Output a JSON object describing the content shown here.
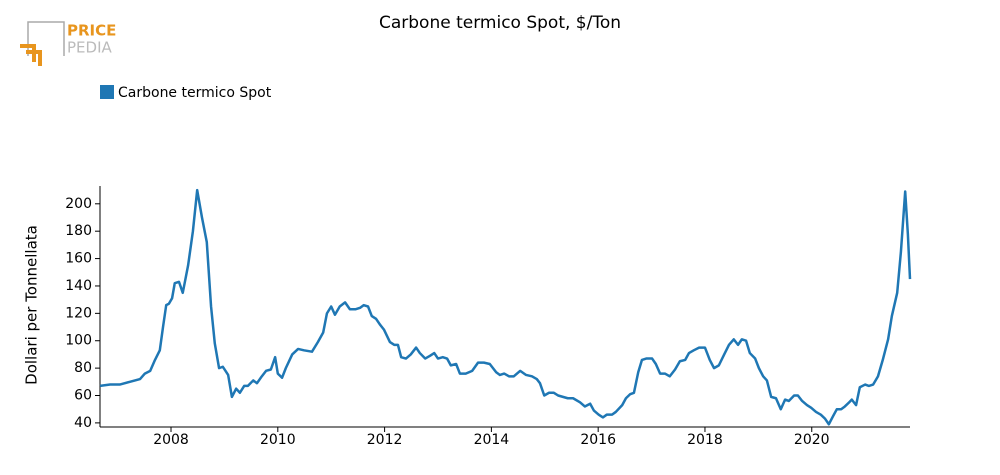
{
  "logo": {
    "top": "PRICE",
    "bottom": "PEDIA"
  },
  "chart_data": {
    "type": "line",
    "title": "Carbone termico Spot, $/Ton",
    "ylabel": "Dollari per Tonnellata",
    "legend": "top-left",
    "xlim": [
      2006.67,
      2021.84
    ],
    "xticks": [
      2008,
      2010,
      2012,
      2014,
      2016,
      2018,
      2020
    ],
    "ylim": [
      37,
      213
    ],
    "yticks": [
      40,
      60,
      80,
      100,
      120,
      140,
      160,
      180,
      200
    ],
    "series": [
      {
        "name": "Carbone termico Spot",
        "color": "#1f77b4",
        "x": [
          2006.67,
          2006.86,
          2007.04,
          2007.23,
          2007.42,
          2007.51,
          2007.61,
          2007.7,
          2007.79,
          2007.85,
          2007.91,
          2007.96,
          2008.02,
          2008.07,
          2008.15,
          2008.22,
          2008.32,
          2008.41,
          2008.49,
          2008.58,
          2008.67,
          2008.75,
          2008.82,
          2008.9,
          2008.97,
          2009.07,
          2009.14,
          2009.22,
          2009.29,
          2009.37,
          2009.44,
          2009.54,
          2009.61,
          2009.7,
          2009.78,
          2009.87,
          2009.95,
          2010.0,
          2010.08,
          2010.15,
          2010.27,
          2010.38,
          2010.49,
          2010.64,
          2010.75,
          2010.85,
          2010.92,
          2011.0,
          2011.07,
          2011.16,
          2011.26,
          2011.35,
          2011.46,
          2011.54,
          2011.61,
          2011.69,
          2011.76,
          2011.84,
          2011.91,
          2011.99,
          2012.1,
          2012.18,
          2012.25,
          2012.31,
          2012.4,
          2012.49,
          2012.59,
          2012.66,
          2012.76,
          2012.85,
          2012.93,
          2013.0,
          2013.09,
          2013.17,
          2013.24,
          2013.34,
          2013.41,
          2013.52,
          2013.64,
          2013.75,
          2013.86,
          2013.97,
          2014.09,
          2014.16,
          2014.24,
          2014.33,
          2014.42,
          2014.54,
          2014.65,
          2014.76,
          2014.85,
          2014.91,
          2014.99,
          2015.08,
          2015.17,
          2015.25,
          2015.34,
          2015.43,
          2015.53,
          2015.66,
          2015.75,
          2015.85,
          2015.92,
          2016.01,
          2016.09,
          2016.16,
          2016.26,
          2016.33,
          2016.45,
          2016.52,
          2016.6,
          2016.67,
          2016.75,
          2016.82,
          2016.9,
          2017.01,
          2017.08,
          2017.16,
          2017.25,
          2017.34,
          2017.44,
          2017.53,
          2017.63,
          2017.7,
          2017.79,
          2017.89,
          2018.0,
          2018.09,
          2018.17,
          2018.26,
          2018.36,
          2018.45,
          2018.54,
          2018.62,
          2018.69,
          2018.77,
          2018.84,
          2018.94,
          2019.01,
          2019.09,
          2019.16,
          2019.24,
          2019.33,
          2019.42,
          2019.5,
          2019.57,
          2019.67,
          2019.74,
          2019.82,
          2019.91,
          2019.99,
          2020.08,
          2020.17,
          2020.25,
          2020.32,
          2020.4,
          2020.47,
          2020.55,
          2020.62,
          2020.7,
          2020.75,
          2020.83,
          2020.9,
          2021.0,
          2021.07,
          2021.15,
          2021.24,
          2021.33,
          2021.43,
          2021.5,
          2021.6,
          2021.67,
          2021.75,
          2021.8,
          2021.84
        ],
        "values": [
          67,
          68,
          68,
          70,
          72,
          76,
          78,
          86,
          93,
          110,
          126,
          127,
          131,
          142,
          143,
          135,
          155,
          180,
          210,
          190,
          172,
          125,
          98,
          80,
          81,
          75,
          59,
          65,
          62,
          67,
          67,
          71,
          69,
          74,
          78,
          79,
          88,
          76,
          73,
          80,
          90,
          94,
          93,
          92,
          99,
          106,
          120,
          125,
          119,
          125,
          128,
          123,
          123,
          124,
          126,
          125,
          118,
          116,
          112,
          108,
          99,
          97,
          97,
          88,
          87,
          90,
          95,
          91,
          87,
          89,
          91,
          87,
          88,
          87,
          82,
          83,
          76,
          76,
          78,
          84,
          84,
          83,
          77,
          75,
          76,
          74,
          74,
          78,
          75,
          74,
          72,
          69,
          60,
          62,
          62,
          60,
          59,
          58,
          58,
          55,
          52,
          54,
          49,
          46,
          44,
          46,
          46,
          48,
          53,
          58,
          61,
          62,
          77,
          86,
          87,
          87,
          83,
          76,
          76,
          74,
          79,
          85,
          86,
          91,
          93,
          95,
          95,
          86,
          80,
          82,
          90,
          97,
          101,
          97,
          101,
          100,
          91,
          87,
          80,
          74,
          71,
          59,
          58,
          50,
          57,
          56,
          60,
          60,
          56,
          53,
          51,
          48,
          46,
          43,
          39,
          45,
          50,
          50,
          52,
          55,
          57,
          53,
          66,
          68,
          67,
          68,
          74,
          86,
          101,
          118,
          135,
          165,
          209,
          178,
          145
        ]
      }
    ]
  }
}
